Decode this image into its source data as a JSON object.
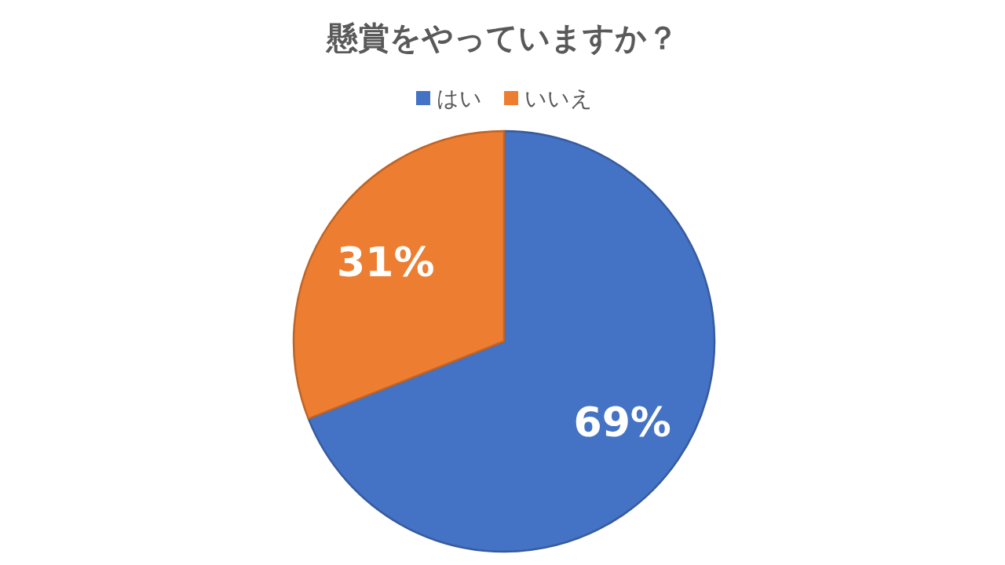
{
  "chart_data": {
    "type": "pie",
    "title": "懸賞をやっていますか？",
    "categories": [
      "はい",
      "いいえ"
    ],
    "values": [
      69,
      31
    ],
    "colors": [
      "#4472c4",
      "#ed7d31"
    ],
    "value_labels": [
      "69%",
      "31%"
    ],
    "legend": "top"
  }
}
